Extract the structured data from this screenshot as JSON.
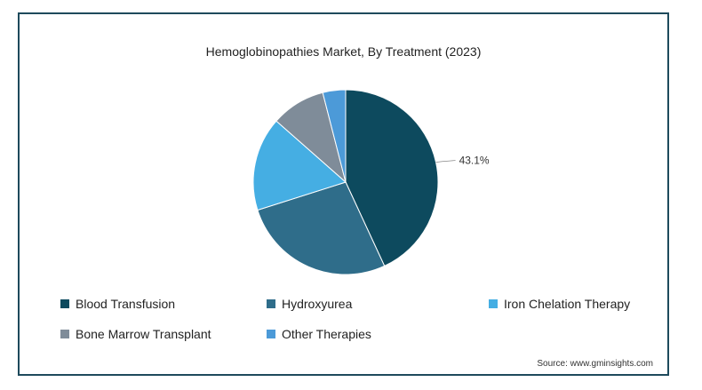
{
  "chart_data": {
    "type": "pie",
    "title": "Hemoglobinopathies Market, By Treatment (2023)",
    "categories": [
      "Blood Transfusion",
      "Hydroxyurea",
      "Iron Chelation Therapy",
      "Bone Marrow Transplant",
      "Other Therapies"
    ],
    "values": [
      43.1,
      27.0,
      16.4,
      9.5,
      4.0
    ],
    "data_labels": [
      "43.1%",
      "",
      "",
      "",
      ""
    ],
    "colors": [
      "#0d4a5e",
      "#2f6d8a",
      "#45aee3",
      "#7f8c99",
      "#4c9ad8"
    ],
    "legend_position": "bottom"
  },
  "source": "Source: www.gminsights.com"
}
